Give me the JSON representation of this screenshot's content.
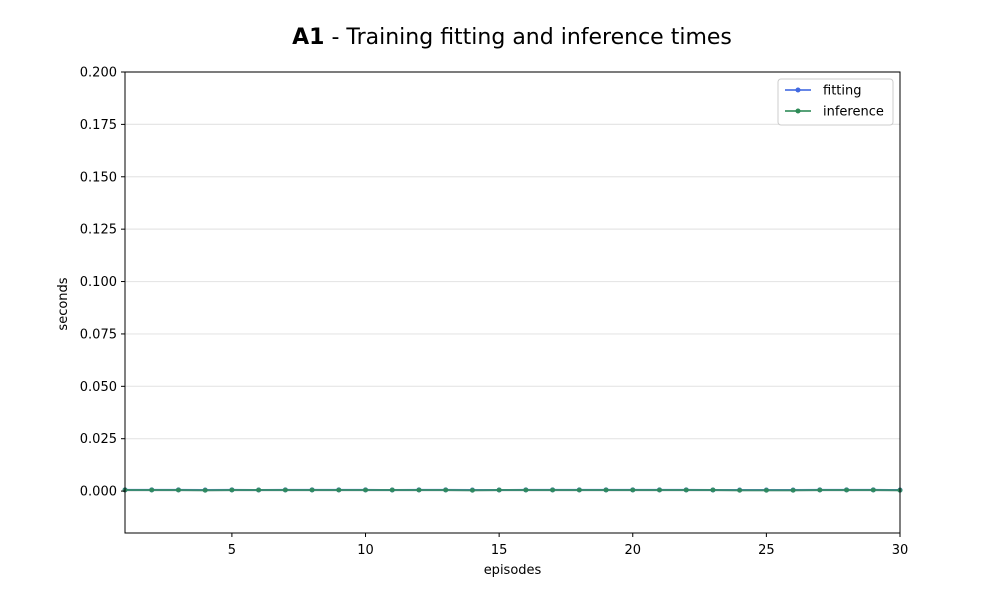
{
  "chart_data": {
    "type": "line",
    "title_bold": "A1",
    "title_rest": " - Training fitting and inference times",
    "xlabel": "episodes",
    "ylabel": "seconds",
    "xlim": [
      1,
      30
    ],
    "ylim": [
      -0.02,
      0.2
    ],
    "x_ticks": [
      5,
      10,
      15,
      20,
      25,
      30
    ],
    "y_ticks": [
      0.0,
      0.025,
      0.05,
      0.075,
      0.1,
      0.125,
      0.15,
      0.175,
      0.2
    ],
    "y_tick_labels": [
      "0.000",
      "0.025",
      "0.050",
      "0.075",
      "0.100",
      "0.125",
      "0.150",
      "0.175",
      "0.200"
    ],
    "grid": "horizontal",
    "legend_position": "top-right",
    "x": [
      1,
      2,
      3,
      4,
      5,
      6,
      7,
      8,
      9,
      10,
      11,
      12,
      13,
      14,
      15,
      16,
      17,
      18,
      19,
      20,
      21,
      22,
      23,
      24,
      25,
      26,
      27,
      28,
      29,
      30
    ],
    "series": [
      {
        "name": "fitting",
        "color": "#4169e1",
        "values": [
          0.0006,
          0.0006,
          0.0006,
          0.0005,
          0.0006,
          0.0005,
          0.0006,
          0.0006,
          0.0006,
          0.0006,
          0.0005,
          0.0006,
          0.0006,
          0.0005,
          0.0005,
          0.0006,
          0.0006,
          0.0006,
          0.0006,
          0.0006,
          0.0006,
          0.0006,
          0.0005,
          0.0005,
          0.0005,
          0.0005,
          0.0006,
          0.0006,
          0.0006,
          0.0005
        ]
      },
      {
        "name": "inference",
        "color": "#2e8b57",
        "values": [
          0.0005,
          0.0005,
          0.0005,
          0.0004,
          0.0005,
          0.0005,
          0.0005,
          0.0005,
          0.0005,
          0.0005,
          0.0005,
          0.0005,
          0.0005,
          0.0004,
          0.0005,
          0.0005,
          0.0005,
          0.0005,
          0.0005,
          0.0005,
          0.0005,
          0.0005,
          0.0005,
          0.0004,
          0.0004,
          0.0004,
          0.0005,
          0.0005,
          0.0005,
          0.0004
        ]
      }
    ]
  }
}
